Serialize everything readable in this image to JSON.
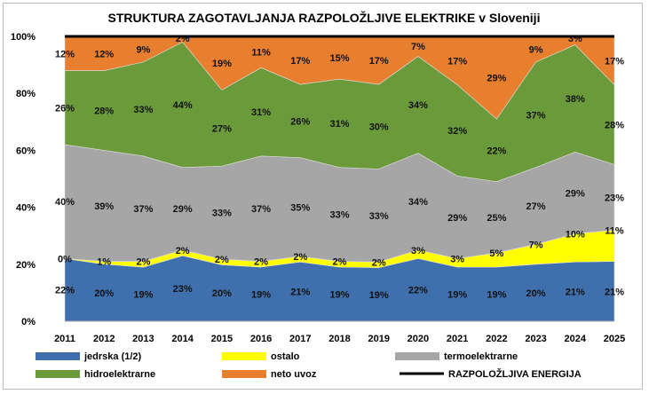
{
  "chart_data": {
    "type": "area",
    "stacked": true,
    "title": "STRUKTURA ZAGOTAVLJANJA RAZPOLOŽLJIVE ELEKTRIKE v Sloveniji",
    "x": [
      "2011",
      "2012",
      "2013",
      "2014",
      "2015",
      "2016",
      "2017",
      "2018",
      "2019",
      "2020",
      "2021",
      "2022",
      "2023",
      "2024",
      "2025"
    ],
    "yticks": [
      "0%",
      "20%",
      "40%",
      "60%",
      "80%",
      "100%"
    ],
    "ylim": [
      0,
      100
    ],
    "series": [
      {
        "name": "jedrska (1/2)",
        "color": "#3f6fac",
        "values": [
          22,
          20,
          19,
          23,
          20,
          19,
          21,
          19,
          19,
          22,
          19,
          19,
          20,
          21,
          21
        ]
      },
      {
        "name": "ostalo",
        "color": "#ffff00",
        "values": [
          0,
          1,
          2,
          2,
          2,
          2,
          2,
          2,
          2,
          3,
          3,
          5,
          7,
          10,
          11
        ]
      },
      {
        "name": "termoelektrarne",
        "color": "#a6a6a6",
        "values": [
          40,
          39,
          37,
          29,
          33,
          37,
          35,
          33,
          33,
          34,
          29,
          25,
          27,
          29,
          23
        ]
      },
      {
        "name": "hidroelektrarne",
        "color": "#6a9a3a",
        "values": [
          26,
          28,
          33,
          44,
          27,
          31,
          26,
          31,
          30,
          34,
          32,
          22,
          37,
          38,
          28
        ]
      },
      {
        "name": "neto uvoz",
        "color": "#e87f2e",
        "values": [
          12,
          12,
          9,
          2,
          19,
          11,
          17,
          15,
          17,
          7,
          17,
          29,
          9,
          3,
          17
        ]
      }
    ],
    "line": {
      "name": "RAZPOLOŽLJIVA ENERGIJA",
      "color": "#000000",
      "value": 100
    },
    "legend": "bottom"
  }
}
